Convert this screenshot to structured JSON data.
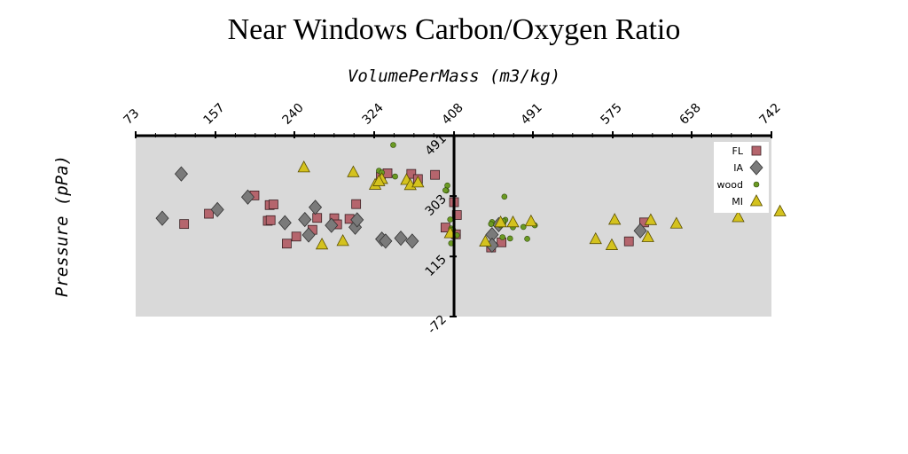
{
  "chart_data": {
    "type": "scatter",
    "title": "Near Windows Carbon/Oxygen Ratio",
    "xlabel": "VolumePerMass (m3/kg)",
    "ylabel": "Pressure (pPa)",
    "x_ticks": [
      "73",
      "157",
      "240",
      "324",
      "408",
      "491",
      "575",
      "658",
      "742"
    ],
    "y_ticks": [
      "-72",
      "115",
      "303",
      "491"
    ],
    "xlim": [
      73,
      742
    ],
    "ylim": [
      -72,
      491
    ],
    "x_axis_position": "top",
    "y_axis_crosses_x_at": 408,
    "grid": false,
    "legend": "top-right",
    "colors": {
      "plot_bg": "#d9d9d9",
      "FL": "#b5656d",
      "IA": "#7a7a7a",
      "wood": "#6b9a23",
      "MI": "#d4c21e"
    },
    "series": [
      {
        "name": "FL",
        "marker": "square",
        "points": [
          [
            124,
            216
          ],
          [
            150,
            248
          ],
          [
            198,
            305
          ],
          [
            212,
            226
          ],
          [
            214,
            275
          ],
          [
            218,
            277
          ],
          [
            215,
            228
          ],
          [
            232,
            155
          ],
          [
            242,
            177
          ],
          [
            259,
            198
          ],
          [
            264,
            235
          ],
          [
            282,
            234
          ],
          [
            285,
            215
          ],
          [
            298,
            232
          ],
          [
            305,
            278
          ],
          [
            331,
            364
          ],
          [
            338,
            374
          ],
          [
            363,
            372
          ],
          [
            370,
            356
          ],
          [
            388,
            369
          ],
          [
            399,
            205
          ],
          [
            408,
            284
          ],
          [
            410,
            184
          ],
          [
            411,
            244
          ],
          [
            447,
            143
          ],
          [
            458,
            159
          ],
          [
            592,
            162
          ],
          [
            608,
            221
          ]
        ]
      },
      {
        "name": "IA",
        "marker": "diamond",
        "points": [
          [
            101,
            234
          ],
          [
            121,
            372
          ],
          [
            159,
            261
          ],
          [
            191,
            300
          ],
          [
            230,
            220
          ],
          [
            251,
            230
          ],
          [
            255,
            182
          ],
          [
            262,
            268
          ],
          [
            279,
            212
          ],
          [
            304,
            206
          ],
          [
            306,
            229
          ],
          [
            332,
            169
          ],
          [
            336,
            163
          ],
          [
            352,
            172
          ],
          [
            364,
            163
          ],
          [
            448,
            183
          ],
          [
            448,
            150
          ],
          [
            455,
            214
          ],
          [
            604,
            195
          ]
        ]
      },
      {
        "name": "wood",
        "marker": "circle",
        "points": [
          [
            344,
            462
          ],
          [
            329,
            382
          ],
          [
            332,
            376
          ],
          [
            346,
            364
          ],
          [
            400,
            320
          ],
          [
            401,
            336
          ],
          [
            399,
            321
          ],
          [
            405,
            202
          ],
          [
            407,
            198
          ],
          [
            411,
            181
          ],
          [
            459,
            175
          ],
          [
            457,
            212
          ],
          [
            462,
            229
          ],
          [
            448,
            222
          ],
          [
            447,
            216
          ],
          [
            459,
            223
          ],
          [
            460,
            219
          ],
          [
            460,
            225
          ],
          [
            461,
            301
          ],
          [
            467,
            171
          ],
          [
            470,
            206
          ],
          [
            481,
            207
          ],
          [
            485,
            170
          ],
          [
            493,
            212
          ],
          [
            405,
            156
          ],
          [
            404,
            230
          ]
        ]
      },
      {
        "name": "MI",
        "marker": "triangle",
        "points": [
          [
            250,
            392
          ],
          [
            269,
            152
          ],
          [
            291,
            163
          ],
          [
            302,
            377
          ],
          [
            325,
            338
          ],
          [
            332,
            356
          ],
          [
            329,
            349
          ],
          [
            358,
            353
          ],
          [
            362,
            337
          ],
          [
            370,
            345
          ],
          [
            404,
            187
          ],
          [
            441,
            161
          ],
          [
            457,
            221
          ],
          [
            470,
            221
          ],
          [
            489,
            224
          ],
          [
            557,
            169
          ],
          [
            574,
            150
          ],
          [
            577,
            229
          ],
          [
            612,
            175
          ],
          [
            615,
            228
          ],
          [
            642,
            217
          ],
          [
            707,
            237
          ],
          [
            751,
            255
          ]
        ]
      }
    ]
  }
}
